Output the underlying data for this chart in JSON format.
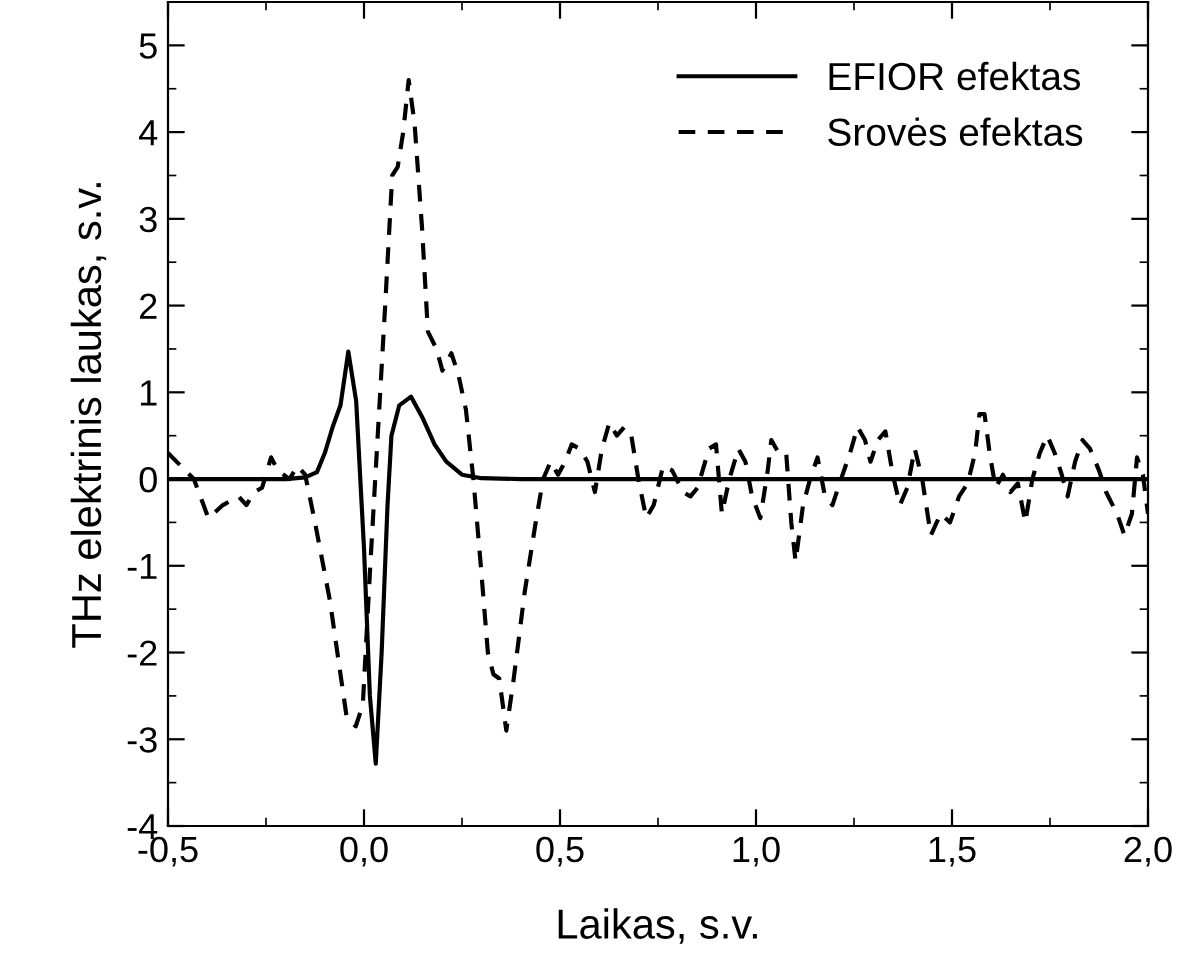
{
  "chart_data": {
    "type": "line",
    "xlabel": "Laikas, s.v.",
    "ylabel": "THz elektrinis laukas, s.v.",
    "xlim": [
      -0.5,
      2.0
    ],
    "ylim": [
      -4,
      5.5
    ],
    "xticks": [
      {
        "value": -0.5,
        "label": "-0,5"
      },
      {
        "value": 0.0,
        "label": "0,0"
      },
      {
        "value": 0.5,
        "label": "0,5"
      },
      {
        "value": 1.0,
        "label": "1,0"
      },
      {
        "value": 1.5,
        "label": "1,5"
      },
      {
        "value": 2.0,
        "label": "2,0"
      }
    ],
    "yticks": [
      -4,
      -3,
      -2,
      -1,
      0,
      1,
      2,
      3,
      4,
      5
    ],
    "legend": "top right",
    "grid": false,
    "series": [
      {
        "name": "EFIOR efektas",
        "color": "#000000",
        "line_style": "solid",
        "x": [
          -0.5,
          -0.2,
          -0.15,
          -0.12,
          -0.1,
          -0.08,
          -0.06,
          -0.04,
          -0.02,
          0.0,
          0.015,
          0.03,
          0.045,
          0.06,
          0.07,
          0.09,
          0.12,
          0.15,
          0.18,
          0.21,
          0.25,
          0.3,
          0.4,
          2.0
        ],
        "values": [
          0,
          0,
          0.02,
          0.08,
          0.3,
          0.6,
          0.85,
          1.47,
          0.9,
          -0.8,
          -2.5,
          -3.28,
          -2.0,
          -0.3,
          0.5,
          0.85,
          0.95,
          0.7,
          0.4,
          0.2,
          0.05,
          0.01,
          0,
          0
        ]
      },
      {
        "name": "Srovės efektas",
        "color": "#000000",
        "line_style": "dashed",
        "x": [
          -0.5,
          -0.434,
          -0.397,
          -0.36,
          -0.32,
          -0.3,
          -0.28,
          -0.26,
          -0.237,
          -0.22,
          -0.19,
          -0.17,
          -0.15,
          -0.125,
          -0.087,
          -0.068,
          -0.044,
          -0.021,
          -0.003,
          0.016,
          0.035,
          0.054,
          0.072,
          0.086,
          0.1,
          0.114,
          0.129,
          0.148,
          0.163,
          0.185,
          0.2,
          0.223,
          0.241,
          0.26,
          0.279,
          0.298,
          0.316,
          0.33,
          0.345,
          0.363,
          0.382,
          0.41,
          0.438,
          0.457,
          0.476,
          0.495,
          0.513,
          0.53,
          0.55,
          0.57,
          0.589,
          0.607,
          0.626,
          0.645,
          0.664,
          0.682,
          0.7,
          0.72,
          0.739,
          0.763,
          0.786,
          0.814,
          0.833,
          0.851,
          0.88,
          0.898,
          0.913,
          0.932,
          0.955,
          0.973,
          0.99,
          1.011,
          1.03,
          1.039,
          1.058,
          1.077,
          1.09,
          1.101,
          1.12,
          1.138,
          1.157,
          1.176,
          1.195,
          1.217,
          1.24,
          1.259,
          1.278,
          1.292,
          1.311,
          1.33,
          1.349,
          1.367,
          1.386,
          1.405,
          1.424,
          1.446,
          1.471,
          1.495,
          1.518,
          1.54,
          1.559,
          1.57,
          1.583,
          1.596,
          1.611,
          1.63,
          1.649,
          1.668,
          1.687,
          1.705,
          1.724,
          1.743,
          1.762,
          1.78,
          1.795,
          1.814,
          1.833,
          1.852,
          1.875,
          1.893,
          1.921,
          1.94,
          1.959,
          1.972,
          1.987,
          2.0
        ],
        "values": [
          0.3,
          0,
          -0.45,
          -0.3,
          -0.2,
          -0.3,
          -0.15,
          -0.1,
          0.25,
          0.1,
          0.0,
          0.15,
          0.05,
          -0.5,
          -1.4,
          -2.0,
          -2.75,
          -2.85,
          -2.6,
          -1.0,
          0.5,
          2.0,
          3.5,
          3.6,
          4.0,
          4.6,
          4.1,
          2.9,
          1.7,
          1.5,
          1.25,
          1.45,
          1.2,
          0.8,
          0.0,
          -1.0,
          -2.0,
          -2.25,
          -2.3,
          -2.9,
          -2.3,
          -1.3,
          -0.5,
          0.0,
          0.2,
          0.05,
          0.2,
          0.4,
          0.35,
          0.2,
          -0.15,
          0.35,
          0.65,
          0.5,
          0.6,
          0.5,
          0.0,
          -0.45,
          -0.3,
          0.15,
          0.1,
          -0.15,
          -0.2,
          -0.1,
          0.35,
          0.4,
          -0.4,
          0.0,
          0.35,
          0.2,
          -0.2,
          -0.45,
          0.1,
          0.45,
          0.3,
          0.3,
          -0.5,
          -0.95,
          -0.3,
          0.0,
          0.25,
          -0.2,
          -0.3,
          0.0,
          0.3,
          0.6,
          0.45,
          0.2,
          0.45,
          0.55,
          0.05,
          -0.3,
          -0.1,
          0.35,
          0.0,
          -0.65,
          -0.4,
          -0.5,
          -0.2,
          -0.05,
          0.3,
          0.75,
          0.75,
          0.3,
          -0.1,
          0.05,
          -0.15,
          -0.05,
          -0.5,
          0.0,
          0.3,
          0.5,
          0.3,
          0.05,
          -0.2,
          0.2,
          0.45,
          0.35,
          0.1,
          -0.15,
          -0.4,
          -0.65,
          -0.4,
          0.25,
          0.05,
          -0.4
        ]
      }
    ]
  }
}
